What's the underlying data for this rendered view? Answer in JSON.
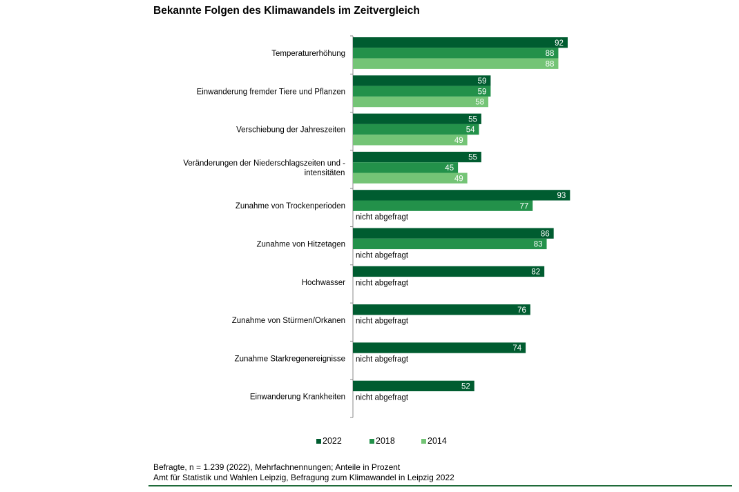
{
  "chart_data": {
    "type": "bar",
    "orientation": "horizontal",
    "title": "Bekannte Folgen des Klimawandels im Zeitvergleich",
    "categories": [
      "Temperaturerhöhung",
      "Einwanderung fremder Tiere und Pflanzen",
      "Verschiebung der Jahreszeiten",
      "Veränderungen der Niederschlagszeiten und - intensitäten",
      "Zunahme von Trockenperioden",
      "Zunahme von Hitzetagen",
      "Hochwasser",
      "Zunahme von Stürmen/Orkanen",
      "Zunahme Starkregenereignisse",
      "Einwanderung Krankheiten"
    ],
    "series": [
      {
        "name": "2022",
        "color": "#005c30",
        "values": [
          92,
          59,
          55,
          55,
          93,
          86,
          82,
          76,
          74,
          52
        ]
      },
      {
        "name": "2018",
        "color": "#23914a",
        "values": [
          88,
          59,
          54,
          45,
          77,
          83,
          null,
          null,
          null,
          null
        ]
      },
      {
        "name": "2014",
        "color": "#74c476",
        "values": [
          88,
          58,
          49,
          49,
          null,
          null,
          null,
          null,
          null,
          null
        ]
      }
    ],
    "missing_label": "nicht abgefragt",
    "xlim": [
      0,
      100
    ],
    "grid": false,
    "legend": "bottom",
    "unit": "Prozent"
  },
  "notes": {
    "line1": "Befragte, n = 1.239 (2022), Mehrfachnennungen; Anteile in Prozent",
    "line2": "Amt für Statistik und Wahlen Leipzig, Befragung zum Klimawandel in Leipzig 2022"
  }
}
